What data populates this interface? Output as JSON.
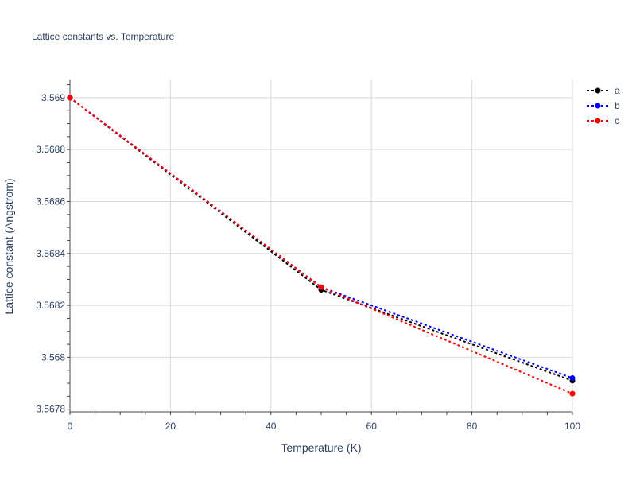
{
  "chart_data": {
    "type": "line",
    "title": "Lattice constants vs. Temperature",
    "xlabel": "Temperature (K)",
    "ylabel": "Lattice constant (Angstrom)",
    "xlim": [
      0,
      100
    ],
    "ylim": [
      3.56779,
      3.56907
    ],
    "x_ticks": [
      0,
      20,
      40,
      60,
      80,
      100
    ],
    "y_ticks": [
      3.5678,
      3.568,
      3.5682,
      3.5684,
      3.5686,
      3.5688,
      3.569
    ],
    "grid": true,
    "legend_position": "top-right",
    "x": [
      0,
      50,
      100
    ],
    "series": [
      {
        "name": "a",
        "color": "#000000",
        "line_style": "dotted",
        "marker": "circle",
        "values": [
          3.569,
          3.56826,
          3.56791
        ]
      },
      {
        "name": "b",
        "color": "#0000ff",
        "line_style": "dotted",
        "marker": "circle",
        "values": [
          3.569,
          3.56827,
          3.56792
        ]
      },
      {
        "name": "c",
        "color": "#ff0000",
        "line_style": "dotted",
        "marker": "circle",
        "values": [
          3.569,
          3.56827,
          3.56786
        ]
      }
    ]
  }
}
